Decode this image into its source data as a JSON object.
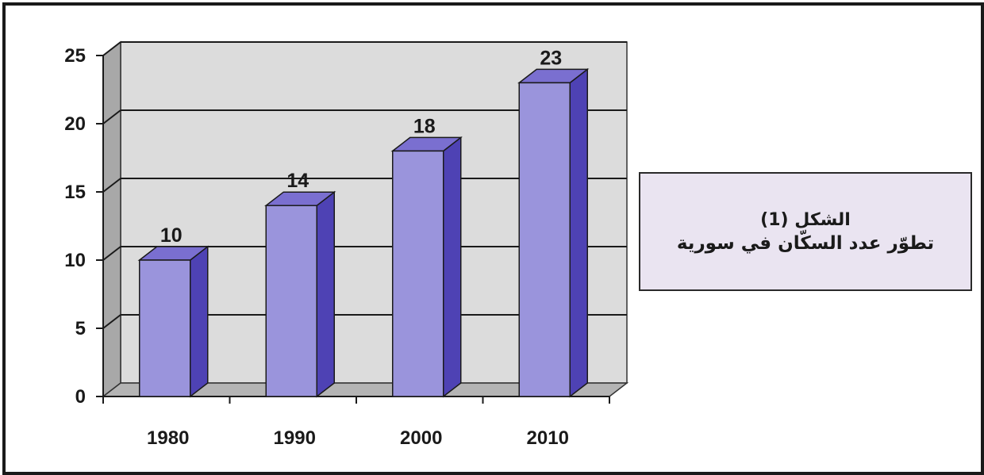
{
  "caption": {
    "line1": "الشكل (1)",
    "line2": "تطوّر عدد السكّان في سورية"
  },
  "colors": {
    "bar_front": "#9a94dc",
    "bar_side": "#4e42b4",
    "bar_top": "#7a6fd0",
    "wall": "#dcdcdc",
    "wall_side": "#a8a8a8",
    "floor": "#b4b4b4",
    "grid": "#1a1a1a",
    "caption_bg": "#eae4f1"
  },
  "chart_data": {
    "type": "bar",
    "categories": [
      "1980",
      "1990",
      "2000",
      "2010"
    ],
    "values": [
      10,
      14,
      18,
      23
    ],
    "data_labels": [
      "10",
      "14",
      "18",
      "23"
    ],
    "yticks": [
      "0",
      "5",
      "10",
      "15",
      "20",
      "25"
    ],
    "ylim": [
      0,
      25
    ],
    "grid": true,
    "three_d": true
  }
}
